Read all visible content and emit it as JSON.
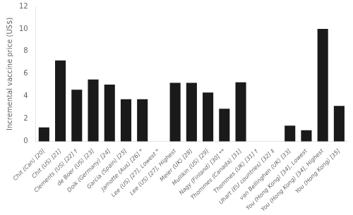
{
  "chart_data": {
    "type": "bar",
    "categories": [
      "Chit (Can) [20]",
      "Chit (US) [21]",
      "Clements (US) [22] †",
      "de Boer (US) [23]",
      "Doik (Germany) [24]",
      "Garcia (Spain) [25]",
      "Jamotte (Aus) [26] *",
      "Lee (US) [27], Lowest *",
      "Lee (US) [27], Highest",
      "Meier (UK) [28]",
      "Mullikin (US) [29]",
      "Nagy (Finland) [30] **",
      "Thommes (Canada) [31]",
      "Thommes (UK) [31] †",
      "Uhart (EU countries) [32] ‡",
      "van Bellinghen (UK) [33]",
      "You (Hong Kong) [34], Lowest",
      "You (Hong Kong) [34], Highest",
      "You (Hong Kong) [35]"
    ],
    "values": [
      1.25,
      7.2,
      4.6,
      5.5,
      5.05,
      3.75,
      3.75,
      0.0,
      5.2,
      5.2,
      4.35,
      2.9,
      5.25,
      0.0,
      0.0,
      1.4,
      1.0,
      10.0,
      3.15
    ],
    "color": "#1a1a1a",
    "ylabel": "Incremental vaccine price (US$)",
    "ylim": [
      0,
      12
    ],
    "yticks": [
      0,
      2,
      4,
      6,
      8,
      10,
      12
    ],
    "grid": false
  }
}
